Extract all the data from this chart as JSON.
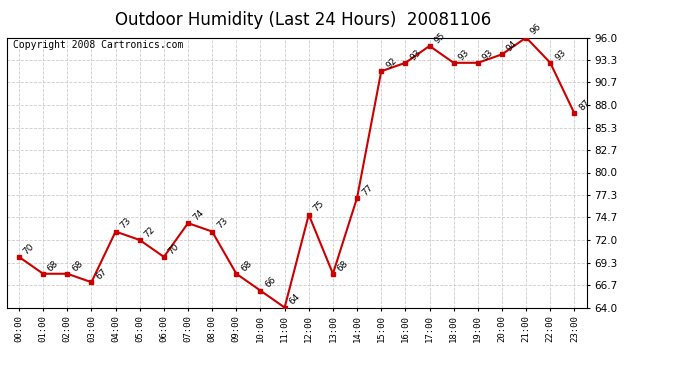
{
  "title": "Outdoor Humidity (Last 24 Hours)  20081106",
  "copyright": "Copyright 2008 Cartronics.com",
  "x_labels": [
    "00:00",
    "01:00",
    "02:00",
    "03:00",
    "04:00",
    "05:00",
    "06:00",
    "07:00",
    "08:00",
    "09:00",
    "10:00",
    "11:00",
    "12:00",
    "13:00",
    "14:00",
    "15:00",
    "16:00",
    "17:00",
    "18:00",
    "19:00",
    "20:00",
    "21:00",
    "22:00",
    "23:00"
  ],
  "y_values": [
    70,
    68,
    68,
    67,
    73,
    72,
    70,
    74,
    73,
    68,
    66,
    64,
    75,
    68,
    77,
    92,
    93,
    95,
    93,
    93,
    94,
    96,
    93,
    87
  ],
  "y_labels": [
    64.0,
    66.7,
    69.3,
    72.0,
    74.7,
    77.3,
    80.0,
    82.7,
    85.3,
    88.0,
    90.7,
    93.3,
    96.0
  ],
  "ylim": [
    64.0,
    96.0
  ],
  "line_color": "#cc0000",
  "marker_color": "#cc0000",
  "bg_color": "#ffffff",
  "plot_bg_color": "#ffffff",
  "grid_color": "#cccccc",
  "title_fontsize": 12,
  "copyright_fontsize": 7
}
